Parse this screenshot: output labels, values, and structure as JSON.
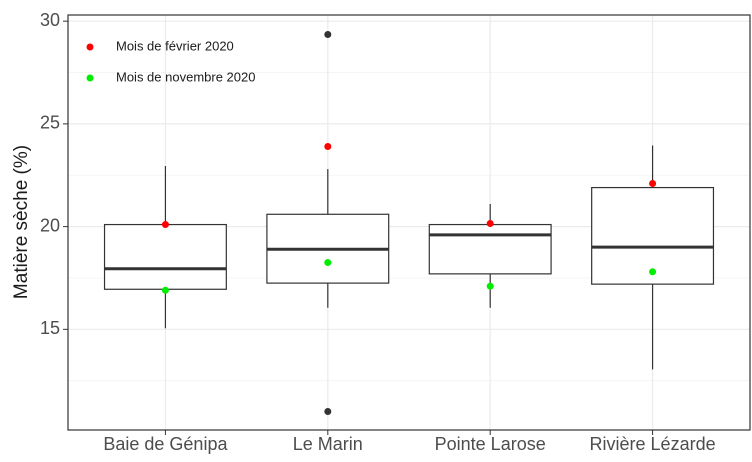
{
  "chart_data": {
    "type": "boxplot",
    "y_label": "Matière sèche (%)",
    "categories": [
      "Baie de Génipa",
      "Le Marin",
      "Pointe Larose",
      "Rivière Lézarde"
    ],
    "boxes": [
      {
        "whislo": 15.05,
        "q1": 16.95,
        "med": 17.95,
        "q3": 20.1,
        "whishi": 22.95,
        "outliers": []
      },
      {
        "whislo": 16.05,
        "q1": 17.25,
        "med": 18.9,
        "q3": 20.6,
        "whishi": 22.8,
        "outliers": [
          29.35,
          11.0
        ]
      },
      {
        "whislo": 16.05,
        "q1": 17.7,
        "med": 19.6,
        "q3": 20.1,
        "whishi": 21.1,
        "outliers": []
      },
      {
        "whislo": 13.05,
        "q1": 17.2,
        "med": 19.0,
        "q3": 21.9,
        "whishi": 23.95,
        "outliers": []
      }
    ],
    "series": [
      {
        "name": "Mois de février 2020",
        "color": "#ff0000",
        "values": [
          20.1,
          23.9,
          20.15,
          22.1
        ]
      },
      {
        "name": "Mois de novembre 2020",
        "color": "#00ee00",
        "values": [
          16.9,
          18.25,
          17.1,
          17.8
        ]
      }
    ],
    "ylim": [
      10.1,
      30.3
    ],
    "yticks": [
      15,
      20,
      25,
      30
    ],
    "minor_gridlines": [
      12.5,
      17.5,
      22.5,
      27.5
    ],
    "grid": true,
    "legend_position": "top-left"
  }
}
